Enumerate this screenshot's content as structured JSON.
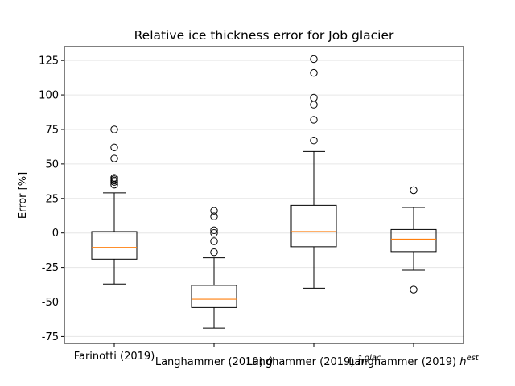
{
  "chart_data": {
    "type": "boxplot",
    "title": "Relative ice thickness error for Job glacier",
    "xlabel": "",
    "ylabel": "Error [%]",
    "ylim": [
      -80,
      135
    ],
    "yticks": [
      -75,
      -50,
      -25,
      0,
      25,
      50,
      75,
      100,
      125
    ],
    "grid": "horizontal",
    "colors": {
      "box": "#000000",
      "median": "#ff7f0e",
      "grid": "#e6e6e6"
    },
    "boxes": [
      {
        "label_base": "Farinotti (2019)",
        "label_sup": "",
        "label_row": "upper",
        "whisker_low": -37,
        "q1": -19,
        "median": -10.5,
        "q3": 1,
        "whisker_high": 29,
        "outliers": [
          75,
          62,
          54,
          40,
          39,
          38,
          37,
          35
        ]
      },
      {
        "label_base": "Langhammer (2019) ",
        "label_sup": "",
        "label_special": "ĝ",
        "label_row": "lower",
        "whisker_low": -69,
        "q1": -54,
        "median": -48,
        "q3": -38,
        "whisker_high": -18,
        "outliers": [
          16,
          12,
          2,
          0,
          -6,
          -14
        ]
      },
      {
        "label_base": "Langhammer (2019) ",
        "label_sup": "glac",
        "label_special": "ĥ",
        "label_row": "lower",
        "whisker_low": -40,
        "q1": -10,
        "median": 1,
        "q3": 20,
        "whisker_high": 59,
        "outliers": [
          126,
          116,
          98,
          93,
          82,
          67
        ]
      },
      {
        "label_base": "Langhammer (2019) ",
        "label_sup": "est",
        "label_special": "h",
        "label_row": "lower",
        "whisker_low": -27,
        "q1": -13.5,
        "median": -4.5,
        "q3": 2.5,
        "whisker_high": 18.5,
        "outliers": [
          31,
          -41
        ]
      }
    ]
  }
}
